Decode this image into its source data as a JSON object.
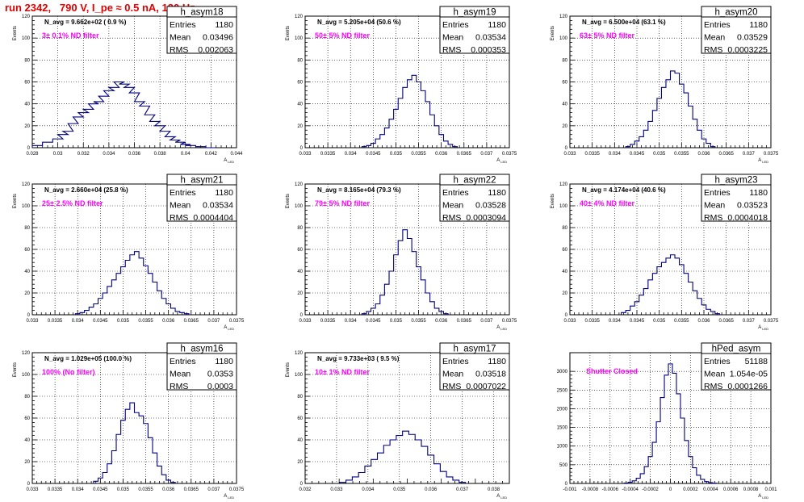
{
  "header": {
    "title": "run 2342,   790 V, I_pe ≈ 0.5 nA, 120 Hz"
  },
  "chart_data": [
    {
      "type": "histogram",
      "name": "h_asym18",
      "navg": "N_avg = 9.662e+02 ( 0.9 %)",
      "filter": "3± 0.1% ND filter",
      "stats": {
        "entries": "1180",
        "mean": "0.03496",
        "rms": "0.002063"
      },
      "xlim": [
        0.028,
        0.044
      ],
      "ylim": [
        0,
        120
      ],
      "xticks": [
        0.028,
        0.03,
        0.032,
        0.034,
        0.036,
        0.038,
        0.04,
        0.042,
        0.044
      ],
      "xticklabels": [
        "0.028",
        "0.03",
        "0.032",
        "0.034",
        "0.036",
        "0.038",
        "0.04",
        "0.042",
        "0.044"
      ],
      "yticks": [
        0,
        20,
        40,
        60,
        80,
        100,
        120
      ],
      "ylabel": "Events",
      "x": [
        0.0284,
        0.0292,
        0.03,
        0.0304,
        0.0308,
        0.0312,
        0.0316,
        0.032,
        0.0324,
        0.0328,
        0.0332,
        0.0336,
        0.034,
        0.0344,
        0.0348,
        0.0352,
        0.0356,
        0.036,
        0.0364,
        0.0368,
        0.0372,
        0.0376,
        0.038,
        0.0384,
        0.0388,
        0.0392,
        0.0396,
        0.04,
        0.0404,
        0.0412,
        0.042
      ],
      "y": [
        2,
        5,
        8,
        12,
        15,
        22,
        28,
        32,
        35,
        40,
        42,
        47,
        52,
        55,
        60,
        58,
        55,
        50,
        42,
        38,
        30,
        24,
        20,
        15,
        10,
        7,
        5,
        3,
        2,
        1,
        0
      ]
    },
    {
      "type": "histogram",
      "name": "h_asym19",
      "navg": "N_avg = 5.205e+04 (50.6 %)",
      "filter": "50± 5% ND filter",
      "stats": {
        "entries": "1180",
        "mean": "0.03534",
        "rms": "0.000353"
      },
      "xlim": [
        0.033,
        0.0375
      ],
      "ylim": [
        0,
        120
      ],
      "xticks": [
        0.033,
        0.0335,
        0.034,
        0.0345,
        0.035,
        0.0355,
        0.036,
        0.0365,
        0.037,
        0.0375
      ],
      "xticklabels": [
        "0.033",
        "0.0335",
        "0.034",
        "0.0345",
        "0.035",
        "0.0355",
        "0.036",
        "0.0365",
        "0.037",
        "0.0375"
      ],
      "yticks": [
        0,
        20,
        40,
        60,
        80,
        100,
        120
      ],
      "ylabel": "Events",
      "x": [
        0.0343,
        0.0344,
        0.0345,
        0.0346,
        0.0347,
        0.0348,
        0.0349,
        0.035,
        0.0351,
        0.0352,
        0.0353,
        0.0354,
        0.0355,
        0.0356,
        0.0357,
        0.0358,
        0.0359,
        0.036,
        0.0361,
        0.0362,
        0.0363
      ],
      "y": [
        1,
        2,
        4,
        8,
        12,
        18,
        26,
        35,
        45,
        55,
        62,
        66,
        60,
        52,
        42,
        30,
        20,
        12,
        6,
        3,
        1
      ]
    },
    {
      "type": "histogram",
      "name": "h_asym20",
      "navg": "N_avg = 6.500e+04 (63.1 %)",
      "filter": "63± 5% ND filter",
      "stats": {
        "entries": "1180",
        "mean": "0.03529",
        "rms": "0.0003225"
      },
      "xlim": [
        0.033,
        0.0375
      ],
      "ylim": [
        0,
        120
      ],
      "xticks": [
        0.033,
        0.0335,
        0.034,
        0.0345,
        0.035,
        0.0355,
        0.036,
        0.0365,
        0.037,
        0.0375
      ],
      "xticklabels": [
        "0.033",
        "0.0335",
        "0.034",
        "0.0345",
        "0.035",
        "0.0355",
        "0.036",
        "0.0365",
        "0.037",
        "0.0375"
      ],
      "yticks": [
        0,
        20,
        40,
        60,
        80,
        100,
        120
      ],
      "ylabel": "Events",
      "x": [
        0.0343,
        0.0344,
        0.0345,
        0.0346,
        0.0347,
        0.0348,
        0.0349,
        0.035,
        0.0351,
        0.0352,
        0.0353,
        0.0354,
        0.0355,
        0.0356,
        0.0357,
        0.0358,
        0.0359,
        0.036,
        0.0361,
        0.0362
      ],
      "y": [
        1,
        3,
        6,
        10,
        16,
        24,
        34,
        45,
        55,
        62,
        70,
        68,
        58,
        50,
        38,
        26,
        16,
        8,
        4,
        1
      ]
    },
    {
      "type": "histogram",
      "name": "h_asym21",
      "navg": "N_avg = 2.660e+04 (25.8 %)",
      "filter": "25± 2.5% ND filter",
      "stats": {
        "entries": "1180",
        "mean": "0.03534",
        "rms": "0.0004404"
      },
      "xlim": [
        0.033,
        0.0375
      ],
      "ylim": [
        0,
        120
      ],
      "xticks": [
        0.033,
        0.0335,
        0.034,
        0.0345,
        0.035,
        0.0355,
        0.036,
        0.0365,
        0.037,
        0.0375
      ],
      "xticklabels": [
        "0.033",
        "0.0335",
        "0.034",
        "0.0345",
        "0.035",
        "0.0355",
        "0.036",
        "0.0365",
        "0.037",
        "0.0375"
      ],
      "yticks": [
        0,
        20,
        40,
        60,
        80,
        100,
        120
      ],
      "ylabel": "Events",
      "x": [
        0.034,
        0.0341,
        0.0342,
        0.0343,
        0.0344,
        0.0345,
        0.0346,
        0.0347,
        0.0348,
        0.0349,
        0.035,
        0.0351,
        0.0352,
        0.0353,
        0.0354,
        0.0355,
        0.0356,
        0.0357,
        0.0358,
        0.0359,
        0.036,
        0.0361,
        0.0362,
        0.0363,
        0.0364
      ],
      "y": [
        1,
        2,
        4,
        7,
        10,
        15,
        20,
        26,
        32,
        38,
        44,
        50,
        55,
        58,
        52,
        45,
        38,
        30,
        22,
        15,
        10,
        6,
        3,
        2,
        1
      ]
    },
    {
      "type": "histogram",
      "name": "h_asym22",
      "navg": "N_avg = 8.165e+04 (79.3 %)",
      "filter": "79± 5% ND filter",
      "stats": {
        "entries": "1180",
        "mean": "0.03528",
        "rms": "0.0003094"
      },
      "xlim": [
        0.033,
        0.0375
      ],
      "ylim": [
        0,
        120
      ],
      "xticks": [
        0.033,
        0.0335,
        0.034,
        0.0345,
        0.035,
        0.0355,
        0.036,
        0.0365,
        0.037,
        0.0375
      ],
      "xticklabels": [
        "0.033",
        "0.0335",
        "0.034",
        "0.0345",
        "0.035",
        "0.0355",
        "0.036",
        "0.0365",
        "0.037",
        "0.0375"
      ],
      "yticks": [
        0,
        20,
        40,
        60,
        80,
        100,
        120
      ],
      "ylabel": "Events",
      "x": [
        0.0343,
        0.0344,
        0.0345,
        0.0346,
        0.0347,
        0.0348,
        0.0349,
        0.035,
        0.0351,
        0.0352,
        0.0353,
        0.0354,
        0.0355,
        0.0356,
        0.0357,
        0.0358,
        0.0359,
        0.036,
        0.0361
      ],
      "y": [
        1,
        3,
        6,
        10,
        18,
        28,
        40,
        55,
        68,
        78,
        70,
        58,
        44,
        32,
        20,
        12,
        6,
        3,
        1
      ]
    },
    {
      "type": "histogram",
      "name": "h_asym23",
      "navg": "N_avg = 4.174e+04 (40.6 %)",
      "filter": "40± 4% ND filter",
      "stats": {
        "entries": "1180",
        "mean": "0.03523",
        "rms": "0.0004018"
      },
      "xlim": [
        0.033,
        0.0375
      ],
      "ylim": [
        0,
        120
      ],
      "xticks": [
        0.033,
        0.0335,
        0.034,
        0.0345,
        0.035,
        0.0355,
        0.036,
        0.0365,
        0.037,
        0.0375
      ],
      "xticklabels": [
        "0.033",
        "0.0335",
        "0.034",
        "0.0345",
        "0.035",
        "0.0355",
        "0.036",
        "0.0365",
        "0.037",
        "0.0375"
      ],
      "yticks": [
        0,
        20,
        40,
        60,
        80,
        100,
        120
      ],
      "ylabel": "Events",
      "x": [
        0.0342,
        0.0343,
        0.0344,
        0.0345,
        0.0346,
        0.0347,
        0.0348,
        0.0349,
        0.035,
        0.0351,
        0.0352,
        0.0353,
        0.0354,
        0.0355,
        0.0356,
        0.0357,
        0.0358,
        0.0359,
        0.036,
        0.0361,
        0.0362,
        0.0363
      ],
      "y": [
        2,
        4,
        8,
        12,
        18,
        24,
        32,
        38,
        44,
        48,
        52,
        55,
        52,
        46,
        38,
        30,
        22,
        15,
        9,
        5,
        3,
        1
      ]
    },
    {
      "type": "histogram",
      "name": "h_asym16",
      "navg": "N_avg = 1.029e+05 (100.0 %)",
      "filter": "100% (No filter)",
      "stats": {
        "entries": "1180",
        "mean": "0.0353",
        "rms": "0.0003"
      },
      "xlim": [
        0.033,
        0.0375
      ],
      "ylim": [
        0,
        120
      ],
      "xticks": [
        0.033,
        0.0335,
        0.034,
        0.0345,
        0.035,
        0.0355,
        0.036,
        0.0365,
        0.037,
        0.0375
      ],
      "xticklabels": [
        "0.033",
        "0.0335",
        "0.034",
        "0.0345",
        "0.035",
        "0.0355",
        "0.036",
        "0.0365",
        "0.037",
        "0.0375"
      ],
      "yticks": [
        0,
        20,
        40,
        60,
        80,
        100,
        120
      ],
      "ylabel": "Events",
      "x": [
        0.0344,
        0.0345,
        0.0346,
        0.0347,
        0.0348,
        0.0349,
        0.035,
        0.0351,
        0.0352,
        0.0353,
        0.0354,
        0.0355,
        0.0356,
        0.0357,
        0.0358,
        0.0359,
        0.036,
        0.0361
      ],
      "y": [
        2,
        5,
        10,
        18,
        30,
        45,
        58,
        68,
        74,
        65,
        62,
        55,
        42,
        28,
        16,
        8,
        3,
        1
      ]
    },
    {
      "type": "histogram",
      "name": "h_asym17",
      "navg": "N_avg = 9.733e+03 ( 9.5 %)",
      "filter": "10± 1% ND filter",
      "stats": {
        "entries": "1180",
        "mean": "0.03518",
        "rms": "0.0007022"
      },
      "xlim": [
        0.032,
        0.0385
      ],
      "ylim": [
        0,
        120
      ],
      "xticks": [
        0.032,
        0.033,
        0.034,
        0.035,
        0.036,
        0.037,
        0.038
      ],
      "xticklabels": [
        "0.032",
        "0.033",
        "0.034",
        "0.035",
        "0.036",
        "0.037",
        "0.038"
      ],
      "yticks": [
        0,
        20,
        40,
        60,
        80,
        100,
        120
      ],
      "ylabel": "Events",
      "x": [
        0.0332,
        0.0334,
        0.0336,
        0.0338,
        0.034,
        0.0342,
        0.0344,
        0.0346,
        0.0348,
        0.035,
        0.0352,
        0.0354,
        0.0356,
        0.0358,
        0.036,
        0.0362,
        0.0364,
        0.0366,
        0.0368,
        0.037
      ],
      "y": [
        1,
        3,
        6,
        10,
        16,
        22,
        28,
        35,
        40,
        44,
        48,
        45,
        40,
        34,
        26,
        18,
        11,
        6,
        3,
        1
      ]
    },
    {
      "type": "histogram",
      "name": "hPed_asym",
      "navg": "",
      "filter": "Shutter Closed",
      "stats": {
        "entries": "51188",
        "mean": "1.054e-05",
        "rms": "0.0001266"
      },
      "xlim": [
        -0.001,
        0.001
      ],
      "ylim": [
        0,
        3500
      ],
      "xticks": [
        -0.001,
        -0.0008,
        -0.0006,
        -0.0004,
        -0.0002,
        0,
        0.0002,
        0.0004,
        0.0006,
        0.0008,
        0.001
      ],
      "xticklabels": [
        "-0.001",
        "-0.0008",
        "-0.0006",
        "-0.0004",
        "-0.0002",
        "0",
        "0.0002",
        "0.0004",
        "0.0006",
        "0.0008",
        "0.001"
      ],
      "yticks": [
        0,
        500,
        1000,
        1500,
        2000,
        2500,
        3000
      ],
      "ylabel": "",
      "x": [
        -0.00044,
        -0.0004,
        -0.00036,
        -0.00032,
        -0.00028,
        -0.00024,
        -0.0002,
        -0.00016,
        -0.00012,
        -8e-05,
        -4e-05,
        0,
        4e-05,
        8e-05,
        0.00012,
        0.00016,
        0.0002,
        0.00024,
        0.00028,
        0.00032,
        0.00036,
        0.0004,
        0.00044
      ],
      "y": [
        10,
        30,
        70,
        140,
        260,
        450,
        720,
        1100,
        1650,
        2300,
        2900,
        3200,
        2950,
        2400,
        1750,
        1150,
        720,
        420,
        220,
        110,
        50,
        20,
        8
      ]
    }
  ]
}
